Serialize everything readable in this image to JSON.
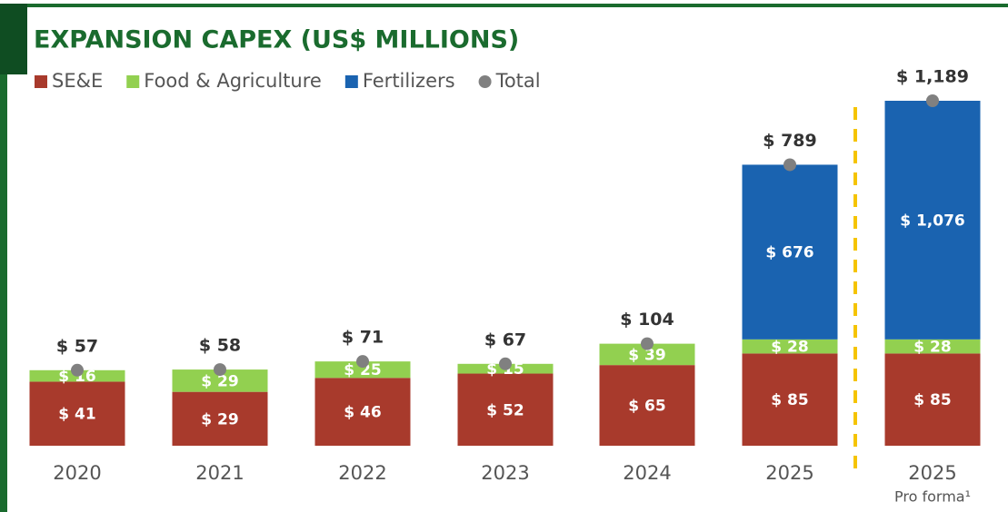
{
  "chart_data": {
    "type": "stacked-bar",
    "title": "EXPANSION CAPEX (US$ MILLIONS)",
    "categories": [
      "2020",
      "2021",
      "2022",
      "2023",
      "2024",
      "2025",
      "2025"
    ],
    "category_note": "Pro forma¹",
    "yscale": "sqrt",
    "ylim": [
      0,
      1189
    ],
    "legend": "top-left",
    "series": [
      {
        "name": "SE&E",
        "color": "#a83a2c",
        "values": [
          41,
          29,
          46,
          52,
          65,
          85,
          85
        ],
        "value_labels": [
          "$ 41",
          "$ 29",
          "$ 46",
          "$ 52",
          "$ 65",
          "$ 85",
          "$ 85"
        ]
      },
      {
        "name": "Food & Agriculture",
        "color": "#92d050",
        "values": [
          16,
          29,
          25,
          15,
          39,
          28,
          28
        ],
        "value_labels": [
          "$ 16",
          "$ 29",
          "$ 25",
          "$ 15",
          "$ 39",
          "$ 28",
          "$ 28"
        ]
      },
      {
        "name": "Fertilizers",
        "color": "#1a63b0",
        "values": [
          null,
          null,
          null,
          null,
          null,
          676,
          1076
        ],
        "value_labels": [
          null,
          null,
          null,
          null,
          null,
          "$ 676",
          "$ 1,076"
        ]
      },
      {
        "name": "Total",
        "color": "#808080",
        "style": "dot",
        "values": [
          57,
          58,
          71,
          67,
          104,
          789,
          1189
        ],
        "value_labels": [
          "$ 57",
          "$ 58",
          "$ 71",
          "$ 67",
          "$ 104",
          "$ 789",
          "$ 1,189"
        ]
      }
    ]
  }
}
